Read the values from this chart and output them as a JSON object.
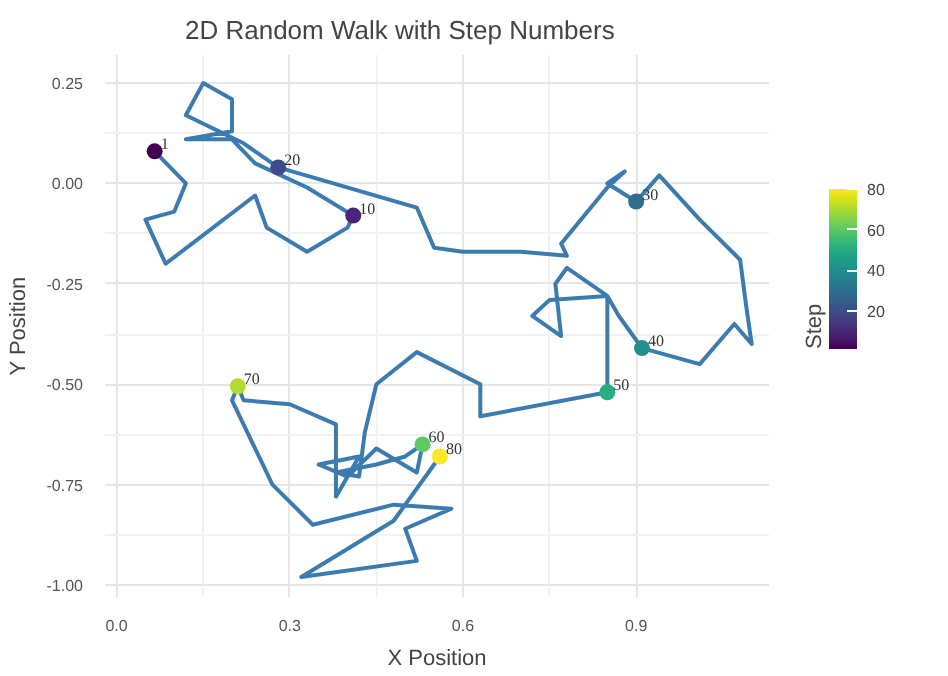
{
  "chart_data": {
    "type": "line",
    "title": "2D Random Walk with Step Numbers",
    "xlabel": "X Position",
    "ylabel": "Y Position",
    "clabel": "Step",
    "xlim": [
      -0.02,
      1.13
    ],
    "ylim": [
      -1.03,
      0.32
    ],
    "xticks": [
      {
        "value": 0,
        "label": "0.0"
      },
      0.3,
      0.6,
      0.9
    ],
    "yticks": [
      {
        "value": -1,
        "label": "-1.00"
      },
      {
        "value": -0.75,
        "label": "-0.75"
      },
      {
        "value": -0.5,
        "label": "-0.50"
      },
      {
        "value": -0.25,
        "label": "-0.25"
      },
      {
        "value": 0,
        "label": "0.00"
      },
      0.25
    ],
    "clim": [
      1,
      80
    ],
    "cticks": [
      20,
      40,
      60,
      80
    ],
    "grid": true,
    "line_style": "solid",
    "annotations": [
      {
        "text": "1",
        "x": 0.066,
        "y": 0.08
      },
      {
        "text": "10",
        "x": 0.41,
        "y": -0.08
      },
      {
        "text": "20",
        "x": 0.28,
        "y": 0.04
      },
      {
        "text": "30",
        "x": 0.9,
        "y": -0.045
      },
      {
        "text": "40",
        "x": 0.91,
        "y": -0.41
      },
      {
        "text": "50",
        "x": 0.85,
        "y": -0.52
      },
      {
        "text": "60",
        "x": 0.53,
        "y": -0.65
      },
      {
        "text": "70",
        "x": 0.21,
        "y": -0.505
      },
      {
        "text": "80",
        "x": 0.56,
        "y": -0.68
      }
    ],
    "series": [
      {
        "color": "#3b7bb0",
        "x": [
          0.066,
          0.12,
          0.1,
          0.05,
          0.085,
          0.24,
          0.26,
          0.33,
          0.4,
          0.41,
          0.33,
          0.24,
          0.2,
          0.12,
          0.2,
          0.2,
          0.15,
          0.12,
          0.22,
          0.28,
          0.52,
          0.55,
          0.6,
          0.7,
          0.78,
          0.77,
          0.85,
          0.88,
          0.85,
          0.9,
          0.94,
          1.01,
          1.08,
          1.09,
          1.1,
          1.07,
          1.04,
          1.01,
          0.96,
          0.91,
          0.87,
          0.85,
          0.78,
          0.76,
          0.77,
          0.72,
          0.75,
          0.85,
          0.85,
          0.85,
          0.63,
          0.63,
          0.52,
          0.45,
          0.43,
          0.42,
          0.38,
          0.45,
          0.5,
          0.53,
          0.52,
          0.45,
          0.4,
          0.35,
          0.42,
          0.38,
          0.38,
          0.3,
          0.22,
          0.21,
          0.2,
          0.27,
          0.34,
          0.48,
          0.58,
          0.5,
          0.52,
          0.32,
          0.48,
          0.56
        ],
        "values": [
          0.08,
          0.0,
          -0.07,
          -0.09,
          -0.2,
          -0.03,
          -0.11,
          -0.17,
          -0.11,
          -0.08,
          -0.01,
          0.05,
          0.11,
          0.11,
          0.13,
          0.21,
          0.25,
          0.17,
          0.1,
          0.04,
          -0.06,
          -0.16,
          -0.17,
          -0.17,
          -0.18,
          -0.15,
          -0.01,
          0.03,
          0.0,
          -0.045,
          0.02,
          -0.09,
          -0.19,
          -0.3,
          -0.4,
          -0.35,
          -0.4,
          -0.45,
          -0.43,
          -0.41,
          -0.33,
          -0.28,
          -0.21,
          -0.25,
          -0.38,
          -0.33,
          -0.29,
          -0.28,
          -0.42,
          -0.52,
          -0.58,
          -0.5,
          -0.42,
          -0.5,
          -0.62,
          -0.73,
          -0.72,
          -0.7,
          -0.68,
          -0.65,
          -0.72,
          -0.66,
          -0.73,
          -0.7,
          -0.68,
          -0.78,
          -0.6,
          -0.55,
          -0.54,
          -0.505,
          -0.54,
          -0.75,
          -0.85,
          -0.8,
          -0.81,
          -0.86,
          -0.94,
          -0.98,
          -0.84,
          -0.68
        ]
      },
      {
        "type": "scatter",
        "marker": "circle",
        "x": [
          0.066,
          0.41,
          0.28,
          0.9,
          0.91,
          0.85,
          0.53,
          0.21,
          0.56
        ],
        "values": [
          0.08,
          -0.08,
          0.04,
          -0.045,
          -0.41,
          -0.52,
          -0.65,
          -0.505,
          -0.68
        ],
        "colors": [
          "#440154",
          "#482576",
          "#3e4a89",
          "#2f6c8e",
          "#21908d",
          "#26ad81",
          "#5ec962",
          "#b0dd2f",
          "#fde725"
        ]
      }
    ]
  }
}
